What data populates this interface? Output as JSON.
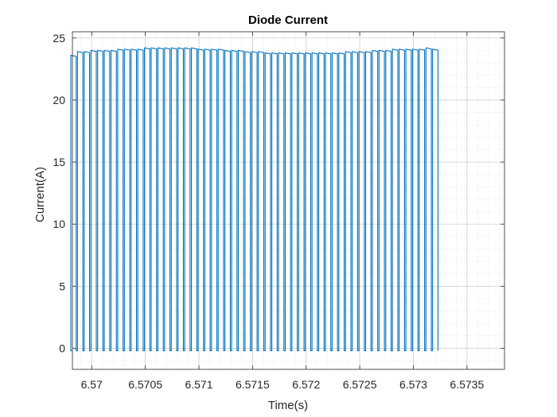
{
  "chart_data": {
    "type": "line",
    "title": "Diode Current",
    "xlabel": "Time(s)",
    "ylabel": "Current(A)",
    "xlim": [
      6.56982,
      6.57385
    ],
    "ylim": [
      -1.7,
      25.5
    ],
    "xticks": [
      6.57,
      6.5705,
      6.571,
      6.5715,
      6.572,
      6.5725,
      6.573,
      6.5735
    ],
    "xtick_labels": [
      "6.57",
      "6.5705",
      "6.571",
      "6.5715",
      "6.572",
      "6.5725",
      "6.573",
      "6.5735"
    ],
    "yticks": [
      0,
      5,
      10,
      15,
      20,
      25
    ],
    "ytick_labels": [
      "0",
      "5",
      "10",
      "15",
      "20",
      "25"
    ],
    "grid": true,
    "minor_grid": true,
    "series": [
      {
        "color": "#0072BD",
        "waveform": "rectangular pulse train",
        "period": 6.25e-05,
        "duty_cycle": 0.8,
        "low_level": -0.2,
        "first_rising_edge": 6.569805,
        "peak_levels": [
          23.6,
          23.9,
          23.9,
          24.0,
          24.0,
          24.0,
          24.0,
          24.1,
          24.1,
          24.1,
          24.1,
          24.2,
          24.2,
          24.2,
          24.2,
          24.2,
          24.2,
          24.2,
          24.2,
          24.1,
          24.1,
          24.1,
          24.1,
          24.0,
          24.0,
          24.0,
          23.9,
          23.9,
          23.9,
          23.8,
          23.8,
          23.8,
          23.8,
          23.8,
          23.8,
          23.8,
          23.8,
          23.8,
          23.8,
          23.8,
          23.8,
          23.9,
          23.9,
          23.9,
          23.9,
          24.0,
          24.0,
          24.0,
          24.1,
          24.1,
          24.1,
          24.1,
          24.1,
          24.2,
          24.1
        ]
      }
    ]
  }
}
